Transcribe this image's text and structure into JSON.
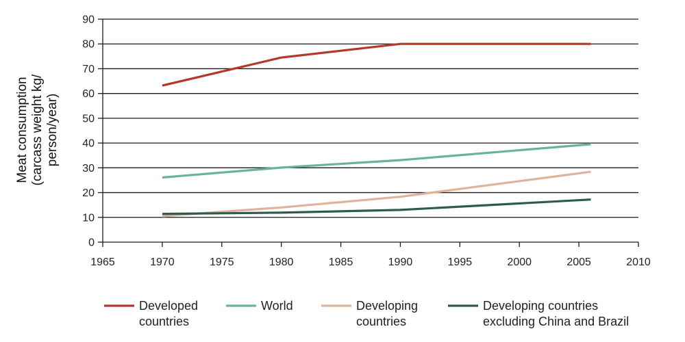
{
  "chart_data": {
    "type": "line",
    "ylabel": [
      "Meat consumption",
      "(carcass weight kg/",
      "person/year)"
    ],
    "xlim": [
      1965,
      2010
    ],
    "ylim": [
      0,
      90
    ],
    "x_ticks": [
      1965,
      1970,
      1975,
      1980,
      1985,
      1990,
      1995,
      2000,
      2005,
      2010
    ],
    "y_ticks": [
      0,
      10,
      20,
      30,
      40,
      50,
      60,
      70,
      80,
      90
    ],
    "grid": "horizontal",
    "legend_position": "bottom",
    "series": [
      {
        "name": [
          "Developed",
          "countries"
        ],
        "color": "#b5392a",
        "points": [
          [
            1970,
            63.2
          ],
          [
            1980,
            74.5
          ],
          [
            1990,
            80.0
          ],
          [
            2006,
            80.0
          ]
        ]
      },
      {
        "name": [
          "World"
        ],
        "color": "#68b3a0",
        "points": [
          [
            1970,
            26.1
          ],
          [
            1980,
            30.1
          ],
          [
            1990,
            33.1
          ],
          [
            2006,
            39.5
          ]
        ]
      },
      {
        "name": [
          "Developing",
          "countries"
        ],
        "color": "#deb39c",
        "points": [
          [
            1970,
            10.5
          ],
          [
            1980,
            14.0
          ],
          [
            1990,
            18.3
          ],
          [
            2006,
            28.4
          ]
        ]
      },
      {
        "name": [
          "Developing countries",
          "excluding China and Brazil"
        ],
        "color": "#2f5b4f",
        "points": [
          [
            1970,
            11.4
          ],
          [
            1980,
            11.9
          ],
          [
            1990,
            13.0
          ],
          [
            2006,
            17.2
          ]
        ]
      }
    ]
  }
}
